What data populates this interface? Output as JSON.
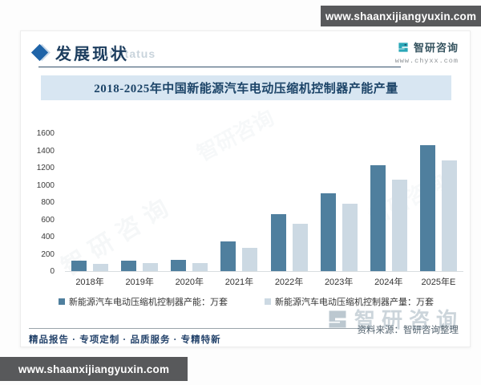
{
  "page": {
    "top_banner": "www.shaanxijiangyuxin.com",
    "bottom_banner": "www.shaanxijiangyuxin.com"
  },
  "header": {
    "section_title": "发展现状",
    "ghost_watermark": "ent status",
    "brand_name": "智研咨询",
    "brand_url": "www.chyxx.com"
  },
  "chart_data": {
    "type": "bar",
    "title": "2018-2025年中国新能源汽车电动压缩机控制器产能产量",
    "categories": [
      "2018年",
      "2019年",
      "2020年",
      "2021年",
      "2022年",
      "2023年",
      "2024年",
      "2025年E"
    ],
    "series": [
      {
        "name": "新能源汽车电动压缩机控制器产能：万套",
        "color": "#4f7f9e",
        "values": [
          120,
          120,
          130,
          340,
          660,
          900,
          1230,
          1460
        ]
      },
      {
        "name": "新能源汽车电动压缩机控制器产量：万套",
        "color": "#ccd9e3",
        "values": [
          80,
          90,
          95,
          270,
          545,
          780,
          1060,
          1285
        ]
      }
    ],
    "ylim": [
      0,
      1600
    ],
    "yticks": [
      0,
      200,
      400,
      600,
      800,
      1000,
      1200,
      1400,
      1600
    ],
    "grid": false,
    "legend_position": "bottom"
  },
  "footer": {
    "tagline": "精品报告 · 专项定制 · 品质服务 · 专精特新",
    "source": "资料来源：智研咨询整理",
    "watermark_brand": "智研咨询"
  },
  "colors": {
    "accent_navy": "#1c3d5e",
    "banner_bg": "#d8e6f2",
    "brand_teal": "#2aa7b8",
    "bar_capacity": "#4f7f9e",
    "bar_output": "#ccd9e3",
    "site_bar_bg": "#58595b"
  }
}
